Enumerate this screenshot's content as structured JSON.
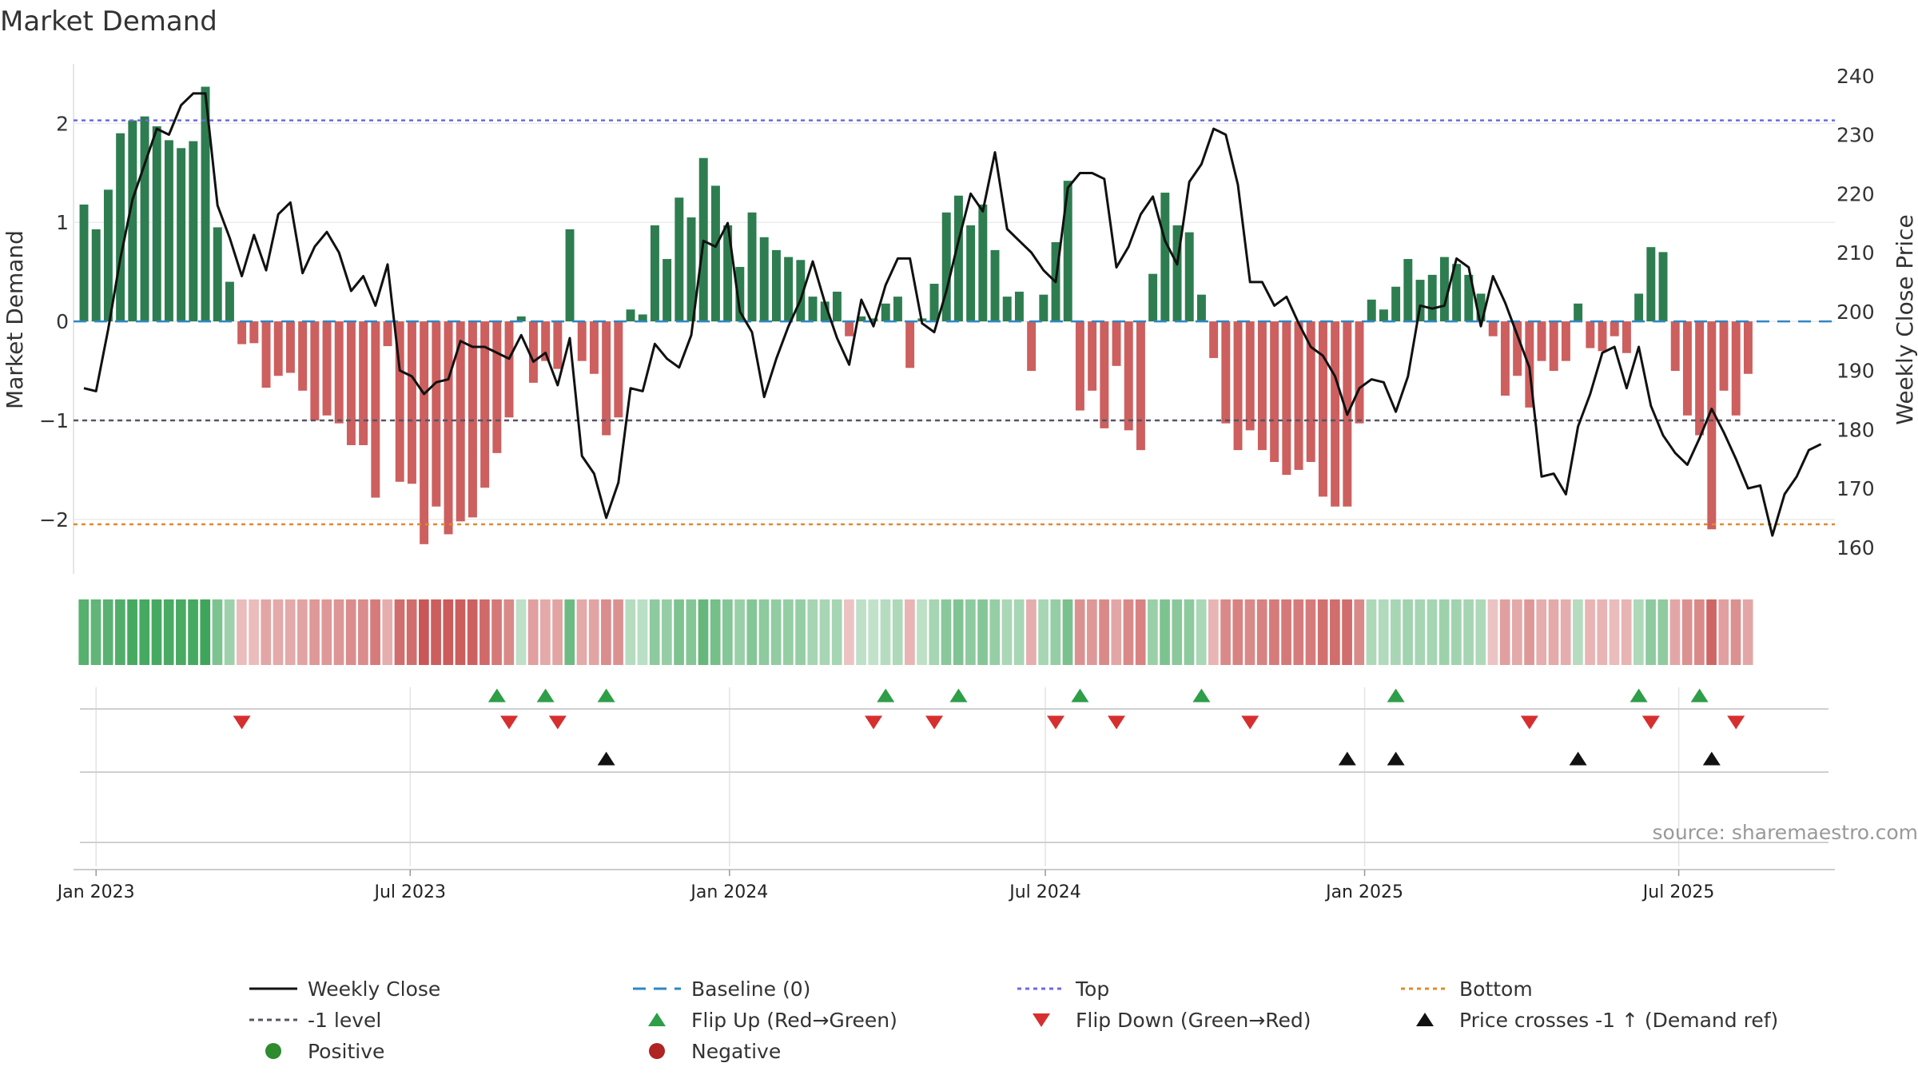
{
  "chart_data": {
    "type": "bar",
    "title": "Market Demand",
    "ylabel_left": "Market Demand",
    "ylabel_right": "Weekly Close Price",
    "source": "source: sharemaestro.com",
    "ylim_left": [
      -2.55,
      2.6
    ],
    "ylim_right": [
      155.5,
      242
    ],
    "yticks_left": [
      {
        "v": 2,
        "label": "2"
      },
      {
        "v": 1,
        "label": "1"
      },
      {
        "v": 0,
        "label": "0"
      },
      {
        "v": -1,
        "label": "−1"
      },
      {
        "v": -2,
        "label": "−2"
      }
    ],
    "yticks_right": [
      240,
      230,
      220,
      210,
      200,
      190,
      180,
      170,
      160
    ],
    "x_start": "2022-12-19",
    "x_end": "2025-09-29",
    "xticks": [
      {
        "date": "2023-01-01",
        "label": "Jan 2023"
      },
      {
        "date": "2023-07-01",
        "label": "Jul 2023"
      },
      {
        "date": "2024-01-01",
        "label": "Jan 2024"
      },
      {
        "date": "2024-07-01",
        "label": "Jul 2024"
      },
      {
        "date": "2025-01-01",
        "label": "Jan 2025"
      },
      {
        "date": "2025-07-01",
        "label": "Jul 2025"
      }
    ],
    "series_start": "2022-12-25",
    "week_step_days": 7,
    "reference_lines": {
      "top": 2.03,
      "bottom": -2.05,
      "minus1": -1.0,
      "baseline": 0
    },
    "demand": [
      1.18,
      0.93,
      1.33,
      1.9,
      2.03,
      2.07,
      1.97,
      1.83,
      1.75,
      1.82,
      2.37,
      0.95,
      0.4,
      -0.23,
      -0.22,
      -0.67,
      -0.55,
      -0.52,
      -0.7,
      -1.0,
      -0.95,
      -1.03,
      -1.25,
      -1.25,
      -1.78,
      -0.25,
      -1.62,
      -1.64,
      -2.25,
      -1.87,
      -2.15,
      -2.02,
      -1.98,
      -1.68,
      -1.33,
      -0.97,
      0.05,
      -0.62,
      -0.4,
      -0.48,
      0.93,
      -0.4,
      -0.53,
      -1.15,
      -0.97,
      0.12,
      0.07,
      0.97,
      0.63,
      1.25,
      1.05,
      1.65,
      1.37,
      0.97,
      0.55,
      1.1,
      0.85,
      0.72,
      0.65,
      0.62,
      0.25,
      0.2,
      0.3,
      -0.15,
      0.05,
      0.03,
      0.18,
      0.25,
      -0.47,
      0.03,
      0.38,
      1.1,
      1.27,
      0.97,
      1.18,
      0.72,
      0.25,
      0.3,
      -0.5,
      0.27,
      0.8,
      1.42,
      -0.9,
      -0.7,
      -1.08,
      -0.45,
      -1.1,
      -1.3,
      0.48,
      1.3,
      0.97,
      0.9,
      0.27,
      -0.37,
      -1.03,
      -1.3,
      -1.1,
      -1.3,
      -1.42,
      -1.55,
      -1.5,
      -1.42,
      -1.77,
      -1.87,
      -1.87,
      -1.03,
      0.22,
      0.12,
      0.35,
      0.63,
      0.42,
      0.47,
      0.65,
      0.58,
      0.47,
      0.28,
      -0.15,
      -0.75,
      -0.55,
      -0.87,
      -0.4,
      -0.5,
      -0.4,
      0.18,
      -0.27,
      -0.3,
      -0.15,
      -0.32,
      0.28,
      0.75,
      0.7,
      -0.5,
      -0.95,
      -1.15,
      -2.1,
      -0.7,
      -0.95,
      -0.53
    ],
    "price": [
      187,
      186.5,
      197,
      209,
      219,
      225,
      231,
      230,
      235,
      237,
      237,
      218,
      212.5,
      206,
      213,
      207,
      216.5,
      218.5,
      206.5,
      211,
      213.5,
      210,
      203.5,
      206,
      201,
      208,
      190,
      189,
      186,
      188,
      188.5,
      195,
      194,
      194,
      193,
      192,
      196,
      191.5,
      193,
      187.5,
      195.5,
      175.5,
      172.5,
      165,
      171,
      187,
      186.5,
      194.5,
      192,
      190.5,
      196,
      212,
      211,
      215,
      200,
      196.5,
      185.5,
      192,
      197.5,
      202,
      208.5,
      201.5,
      195.5,
      191,
      202,
      197.5,
      204.5,
      209,
      209,
      198,
      196.5,
      203.5,
      212,
      220,
      217,
      227,
      214,
      212,
      210,
      207,
      205,
      221,
      223.5,
      223.5,
      222.5,
      207.5,
      211,
      216.5,
      219.5,
      212,
      208,
      222,
      225,
      231,
      230,
      221.5,
      205,
      205,
      201,
      202.5,
      198,
      194,
      192.5,
      189,
      182.5,
      187,
      188.5,
      188,
      183,
      189,
      201,
      200.5,
      201,
      209,
      207.5,
      197.5,
      206,
      201.5,
      196,
      190.5,
      172,
      172.5,
      169,
      180.5,
      186,
      193,
      194,
      187,
      194,
      184,
      179,
      176,
      174,
      178.5,
      183.5,
      179.5,
      175,
      170,
      170.5,
      162,
      169,
      172,
      176.5,
      177.5
    ],
    "strip_values": [
      0.85,
      0.78,
      0.82,
      0.88,
      0.95,
      0.95,
      0.95,
      0.93,
      0.93,
      0.95,
      1.0,
      0.6,
      0.4,
      -0.25,
      -0.25,
      -0.4,
      -0.38,
      -0.38,
      -0.42,
      -0.5,
      -0.5,
      -0.52,
      -0.58,
      -0.58,
      -0.7,
      -0.35,
      -0.8,
      -0.8,
      -0.95,
      -0.9,
      -0.92,
      -0.9,
      -0.88,
      -0.82,
      -0.72,
      -0.6,
      0.2,
      -0.45,
      -0.38,
      -0.42,
      0.7,
      -0.38,
      -0.42,
      -0.58,
      -0.55,
      0.25,
      0.22,
      0.5,
      0.45,
      0.6,
      0.55,
      0.75,
      0.65,
      0.55,
      0.42,
      0.55,
      0.5,
      0.47,
      0.45,
      0.45,
      0.35,
      0.33,
      0.35,
      -0.2,
      0.2,
      0.18,
      0.25,
      0.3,
      -0.3,
      0.2,
      0.35,
      0.52,
      0.58,
      0.5,
      0.55,
      0.45,
      0.32,
      0.34,
      -0.35,
      0.34,
      0.45,
      0.62,
      -0.55,
      -0.5,
      -0.6,
      -0.4,
      -0.6,
      -0.65,
      0.42,
      0.6,
      0.52,
      0.5,
      0.32,
      -0.3,
      -0.6,
      -0.65,
      -0.6,
      -0.65,
      -0.7,
      -0.72,
      -0.7,
      -0.7,
      -0.78,
      -0.8,
      -0.8,
      -0.6,
      0.3,
      0.28,
      0.33,
      0.38,
      0.35,
      0.35,
      0.4,
      0.38,
      0.35,
      0.3,
      -0.2,
      -0.45,
      -0.38,
      -0.5,
      -0.35,
      -0.38,
      -0.35,
      0.25,
      -0.3,
      -0.3,
      -0.25,
      -0.3,
      0.3,
      0.5,
      0.48,
      -0.4,
      -0.55,
      -0.6,
      -0.85,
      -0.45,
      -0.55,
      -0.4
    ],
    "flip_up_dates": [
      "2023-08-20",
      "2023-09-17",
      "2023-10-22",
      "2024-03-31",
      "2024-05-12",
      "2024-07-21",
      "2024-09-29",
      "2025-01-19",
      "2025-06-08",
      "2025-07-13"
    ],
    "flip_down_dates": [
      "2023-03-26",
      "2023-08-27",
      "2023-09-24",
      "2024-03-24",
      "2024-04-28",
      "2024-07-07",
      "2024-08-11",
      "2024-10-27",
      "2025-04-06",
      "2025-06-15",
      "2025-08-03"
    ],
    "price_cross_dates": [
      "2023-10-22",
      "2024-12-22",
      "2025-01-19",
      "2025-05-04",
      "2025-07-20"
    ],
    "legend": [
      {
        "key": "weekly_close",
        "label": "Weekly Close",
        "color": "#111111"
      },
      {
        "key": "baseline",
        "label": "Baseline (0)",
        "color": "#2f86c4"
      },
      {
        "key": "top",
        "label": "Top",
        "color": "#6d6ae0"
      },
      {
        "key": "bottom",
        "label": "Bottom",
        "color": "#e08a2c"
      },
      {
        "key": "minus1",
        "label": "-1 level",
        "color": "#555566"
      },
      {
        "key": "flip_up",
        "label": "Flip Up (Red→Green)",
        "color": "#2e9e48"
      },
      {
        "key": "flip_down",
        "label": "Flip Down (Green→Red)",
        "color": "#d62f2f"
      },
      {
        "key": "price_cross",
        "label": "Price crosses -1 ↑ (Demand ref)",
        "color": "#111111"
      },
      {
        "key": "positive",
        "label": "Positive",
        "color": "#2e8b2e"
      },
      {
        "key": "negative",
        "label": "Negative",
        "color": "#b02424"
      }
    ],
    "colors": {
      "positive_bar": "#2e7d50",
      "negative_bar": "#cd5f5f",
      "price_line": "#111111",
      "strip_positive": "#3ea55a",
      "strip_negative": "#c85050"
    }
  }
}
